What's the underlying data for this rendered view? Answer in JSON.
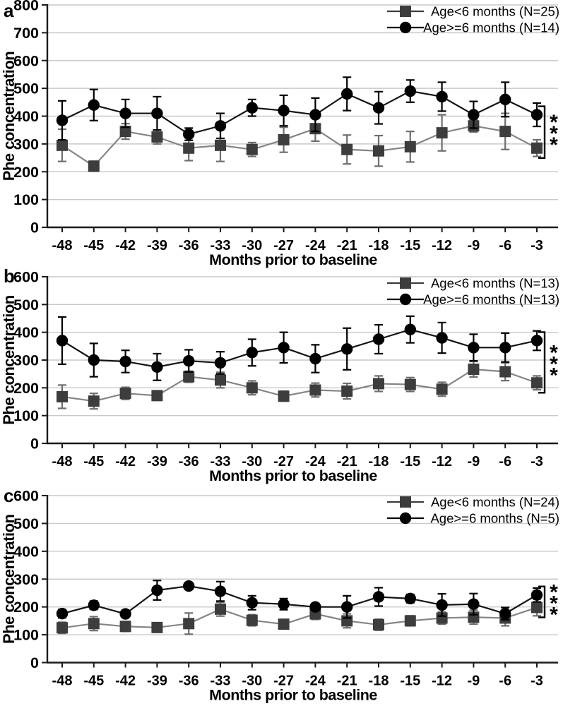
{
  "figure": {
    "ylabel": "Phe concentration",
    "xlabel": "Months prior to baseline"
  },
  "colors": {
    "square_marker": "#3d3d3d",
    "square_line": "#858585",
    "square_error": "#6e6e6e",
    "circle_marker": "#000000",
    "circle_line": "#141414",
    "grid_line": "#c9c9c9",
    "axis": "#1a1a1a",
    "text": "#000000"
  },
  "chart_data": [
    {
      "type": "line",
      "panel_label": "a",
      "xlabel": "Months prior to baseline",
      "ylabel": "Phe concentration",
      "ylim": [
        0,
        800
      ],
      "ytick_step": 100,
      "grid": true,
      "legend_position": "top-right",
      "significance": "***",
      "x": [
        -48,
        -45,
        -42,
        -39,
        -36,
        -33,
        -30,
        -27,
        -24,
        -21,
        -18,
        -15,
        -12,
        -9,
        -6,
        -3
      ],
      "series": [
        {
          "name": "Age<6 months (N=25)",
          "marker": "square",
          "values": [
            295,
            220,
            345,
            325,
            285,
            295,
            280,
            315,
            355,
            280,
            275,
            290,
            340,
            365,
            345,
            285
          ],
          "errors": [
            58,
            18,
            28,
            25,
            45,
            58,
            25,
            45,
            45,
            52,
            55,
            55,
            65,
            22,
            65,
            30
          ]
        },
        {
          "name": "Age>=6 months (N=14)",
          "marker": "circle",
          "values": [
            385,
            440,
            410,
            410,
            335,
            365,
            430,
            420,
            405,
            480,
            430,
            490,
            470,
            405,
            460,
            405
          ],
          "errors": [
            70,
            56,
            50,
            60,
            22,
            45,
            30,
            55,
            60,
            60,
            58,
            40,
            52,
            48,
            62,
            42
          ]
        }
      ]
    },
    {
      "type": "line",
      "panel_label": "b",
      "xlabel": "Months prior to baseline",
      "ylabel": "Phe concentration",
      "ylim": [
        0,
        600
      ],
      "ytick_step": 100,
      "grid": true,
      "legend_position": "top-right",
      "significance": "***",
      "x": [
        -48,
        -45,
        -42,
        -39,
        -36,
        -33,
        -30,
        -27,
        -24,
        -21,
        -18,
        -15,
        -12,
        -9,
        -6,
        -3
      ],
      "series": [
        {
          "name": "Age<6 months (N=13)",
          "marker": "square",
          "values": [
            168,
            152,
            180,
            172,
            240,
            228,
            200,
            170,
            192,
            188,
            215,
            212,
            195,
            267,
            258,
            218
          ],
          "errors": [
            42,
            28,
            22,
            15,
            20,
            28,
            25,
            18,
            25,
            28,
            28,
            25,
            25,
            28,
            32,
            25
          ]
        },
        {
          "name": "Age>=6 months (N=13)",
          "marker": "circle",
          "values": [
            370,
            300,
            295,
            275,
            297,
            290,
            327,
            345,
            305,
            340,
            375,
            410,
            380,
            345,
            345,
            370
          ],
          "errors": [
            85,
            60,
            40,
            48,
            40,
            40,
            48,
            55,
            50,
            75,
            52,
            48,
            55,
            48,
            52,
            35
          ]
        }
      ]
    },
    {
      "type": "line",
      "panel_label": "c",
      "xlabel": "Months prior to baseline",
      "ylabel": "Phe concentration",
      "ylim": [
        0,
        600
      ],
      "ytick_step": 100,
      "grid": true,
      "legend_position": "top-right",
      "significance": "***",
      "x": [
        -48,
        -45,
        -42,
        -39,
        -36,
        -33,
        -30,
        -27,
        -24,
        -21,
        -18,
        -15,
        -12,
        -9,
        -6,
        -3
      ],
      "series": [
        {
          "name": "Age<6 months (N=24)",
          "marker": "square",
          "values": [
            125,
            140,
            130,
            126,
            140,
            192,
            152,
            138,
            175,
            150,
            136,
            150,
            160,
            163,
            160,
            198
          ],
          "errors": [
            20,
            25,
            18,
            15,
            38,
            25,
            20,
            15,
            20,
            25,
            20,
            18,
            22,
            25,
            28,
            30
          ]
        },
        {
          "name": "Age>=6 months (N=5)",
          "marker": "circle",
          "values": [
            176,
            206,
            175,
            260,
            275,
            256,
            215,
            210,
            200,
            200,
            236,
            230,
            207,
            210,
            176,
            243
          ],
          "errors": [
            15,
            15,
            10,
            35,
            12,
            35,
            25,
            20,
            12,
            40,
            33,
            15,
            40,
            38,
            22,
            25
          ]
        }
      ]
    }
  ]
}
